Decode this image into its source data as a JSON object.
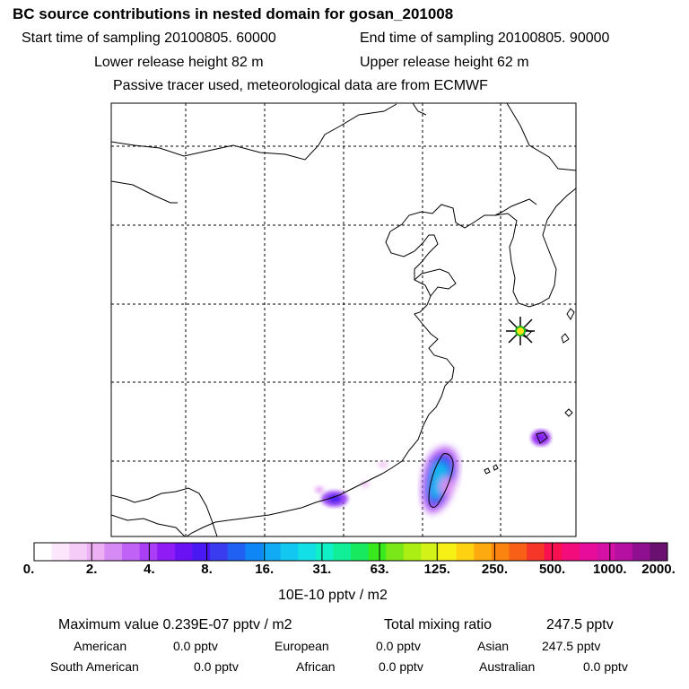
{
  "header": {
    "title": "BC  source contributions in nested domain for gosan_201008",
    "start_time": "Start time of sampling 20100805. 60000",
    "end_time": "End time of sampling 20100805. 90000",
    "lower_release": "Lower release height   82 m",
    "upper_release": "Upper release height   62 m",
    "tracer_note": "Passive tracer used, meteorological data are from ECMWF"
  },
  "map": {
    "region": "East Asia nested domain (eastern China, Korea, Taiwan)",
    "receptor_marker": "star-receptor-gosan",
    "colors": {
      "coast": "#000000",
      "grid": "#000000"
    }
  },
  "colorbar": {
    "ticks": [
      "0.",
      "2.",
      "4.",
      "8.",
      "16.",
      "31.",
      "63.",
      "125.",
      "250.",
      "500.",
      "1000.",
      "2000."
    ],
    "unit": "10E-10 pptv / m2",
    "colors": [
      "#ffffff",
      "#fbe6fb",
      "#f5ccf7",
      "#eeb0f4",
      "#d68af3",
      "#c062f5",
      "#a93ef5",
      "#8f1cf5",
      "#6a12f3",
      "#4a18f3",
      "#3a3cf0",
      "#2060f2",
      "#0e86f5",
      "#10aaf5",
      "#12c8f0",
      "#12e0e6",
      "#10f0c6",
      "#10ee98",
      "#18ea60",
      "#3ae81e",
      "#7ae818",
      "#aaee14",
      "#d2f218",
      "#f6f016",
      "#fed210",
      "#fdaa10",
      "#fb8410",
      "#f86018",
      "#f63628",
      "#fa1050",
      "#f20c7c",
      "#e80c9a",
      "#d410a6",
      "#b610a2",
      "#8e1090",
      "#6a1070"
    ]
  },
  "stats": {
    "maximum_value": "Maximum value  0.239E-07 pptv / m2",
    "total_mixing_ratio_label": "Total mixing ratio",
    "total_mixing_ratio": "247.5 pptv",
    "american_label": "American",
    "american_value": "0.0 pptv",
    "european_label": "European",
    "european_value": "0.0 pptv",
    "asian_label": "Asian",
    "asian_value": "247.5 pptv",
    "south_american_label": "South American",
    "south_american_value": "0.0 pptv",
    "african_label": "African",
    "african_value": "0.0 pptv",
    "australian_label": "Australian",
    "australian_value": "0.0 pptv"
  }
}
